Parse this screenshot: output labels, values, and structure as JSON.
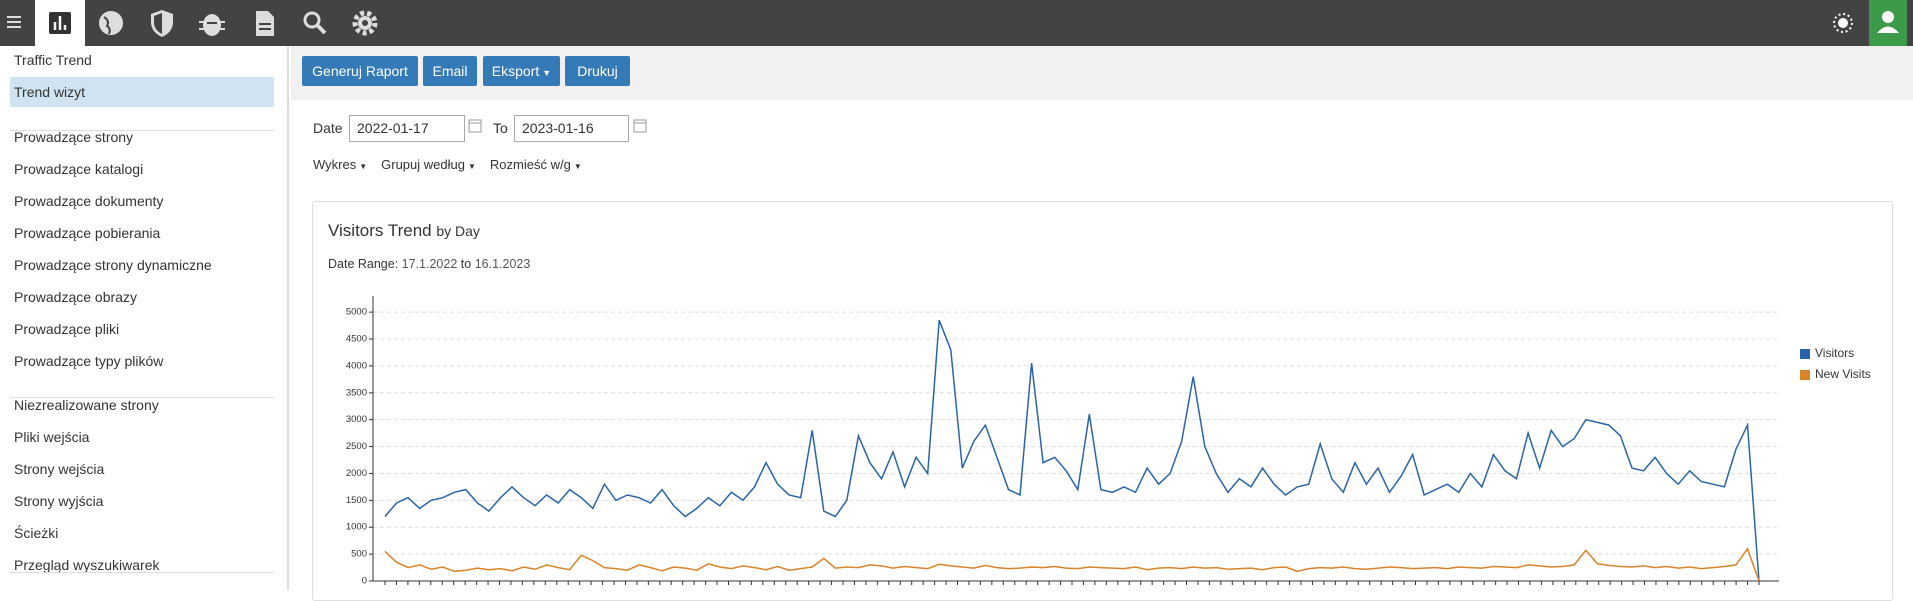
{
  "sidebar": {
    "items": [
      "Traffic Trend",
      "Trend wizyt",
      "Prowadzące strony",
      "Prowadzące katalogi",
      "Prowadzące dokumenty",
      "Prowadzące pobierania",
      "Prowadzące strony dynamiczne",
      "Prowadzące obrazy",
      "Prowadzące pliki",
      "Prowadzące typy plików",
      "Niezrealizowane strony",
      "Pliki wejścia",
      "Strony wejścia",
      "Strony wyjścia",
      "Ścieżki",
      "Przegląd wyszukiwarek"
    ]
  },
  "toolbar": {
    "buttons": [
      "Generuj Raport",
      "Email",
      "Eksport",
      "Drukuj"
    ]
  },
  "filters": {
    "date_label": "Date",
    "date_from": "2022-01-17",
    "to_label": "To",
    "date_to": "2023-01-16",
    "dropdowns": [
      "Wykres",
      "Grupuj według",
      "Rozmieść w/g"
    ]
  },
  "chart_data": {
    "type": "line",
    "title": "Visitors Trend",
    "title_suffix": "by Day",
    "subtitle_label": "Date Range:",
    "range_from": "17.1.2022",
    "range_to_word": "to",
    "range_to": "16.1.2023",
    "ylim": [
      0,
      5300
    ],
    "yticks": [
      0,
      500,
      1000,
      1500,
      2000,
      2500,
      3000,
      3500,
      4000,
      4500,
      5000
    ],
    "grid": true,
    "series": [
      {
        "name": "Visitors",
        "color": "#2a64a8",
        "values": [
          1200,
          1450,
          1550,
          1350,
          1500,
          1550,
          1650,
          1700,
          1450,
          1300,
          1550,
          1750,
          1550,
          1400,
          1600,
          1450,
          1700,
          1550,
          1350,
          1800,
          1500,
          1600,
          1550,
          1450,
          1700,
          1400,
          1200,
          1350,
          1550,
          1400,
          1650,
          1500,
          1750,
          2200,
          1800,
          1600,
          1550,
          2800,
          1300,
          1200,
          1500,
          2700,
          2200,
          1900,
          2400,
          1750,
          2300,
          2000,
          4850,
          4300,
          2100,
          2600,
          2900,
          2300,
          1700,
          1600,
          4050,
          2200,
          2300,
          2050,
          1700,
          3100,
          1700,
          1650,
          1750,
          1650,
          2100,
          1800,
          2000,
          2600,
          3800,
          2500,
          2000,
          1650,
          1900,
          1750,
          2100,
          1800,
          1600,
          1750,
          1800,
          2550,
          1900,
          1650,
          2200,
          1800,
          2100,
          1650,
          1950,
          2350,
          1600,
          1700,
          1800,
          1650,
          2000,
          1750,
          2350,
          2050,
          1900,
          2750,
          2100,
          2800,
          2500,
          2650,
          3000,
          2950,
          2900,
          2700,
          2100,
          2050,
          2300,
          2000,
          1800,
          2050,
          1850,
          1800,
          1750,
          2450,
          2900,
          0
        ]
      },
      {
        "name": "New Visits",
        "color": "#d9832b",
        "values": [
          550,
          350,
          250,
          300,
          220,
          260,
          180,
          200,
          240,
          210,
          230,
          190,
          260,
          220,
          300,
          250,
          210,
          480,
          380,
          250,
          230,
          200,
          300,
          250,
          190,
          260,
          240,
          200,
          320,
          260,
          230,
          280,
          250,
          210,
          270,
          200,
          230,
          260,
          420,
          240,
          260,
          250,
          300,
          280,
          240,
          270,
          250,
          230,
          310,
          280,
          260,
          240,
          290,
          250,
          230,
          240,
          260,
          250,
          270,
          240,
          230,
          260,
          250,
          240,
          230,
          260,
          210,
          240,
          250,
          230,
          260,
          240,
          250,
          220,
          230,
          240,
          210,
          250,
          260,
          180,
          230,
          250,
          240,
          260,
          230,
          220,
          240,
          260,
          250,
          230,
          240,
          250,
          230,
          260,
          250,
          240,
          270,
          260,
          250,
          300,
          280,
          260,
          270,
          300,
          570,
          320,
          290,
          270,
          260,
          280,
          250,
          270,
          240,
          260,
          230,
          250,
          270,
          300,
          600,
          0
        ]
      }
    ],
    "legend": "right"
  }
}
